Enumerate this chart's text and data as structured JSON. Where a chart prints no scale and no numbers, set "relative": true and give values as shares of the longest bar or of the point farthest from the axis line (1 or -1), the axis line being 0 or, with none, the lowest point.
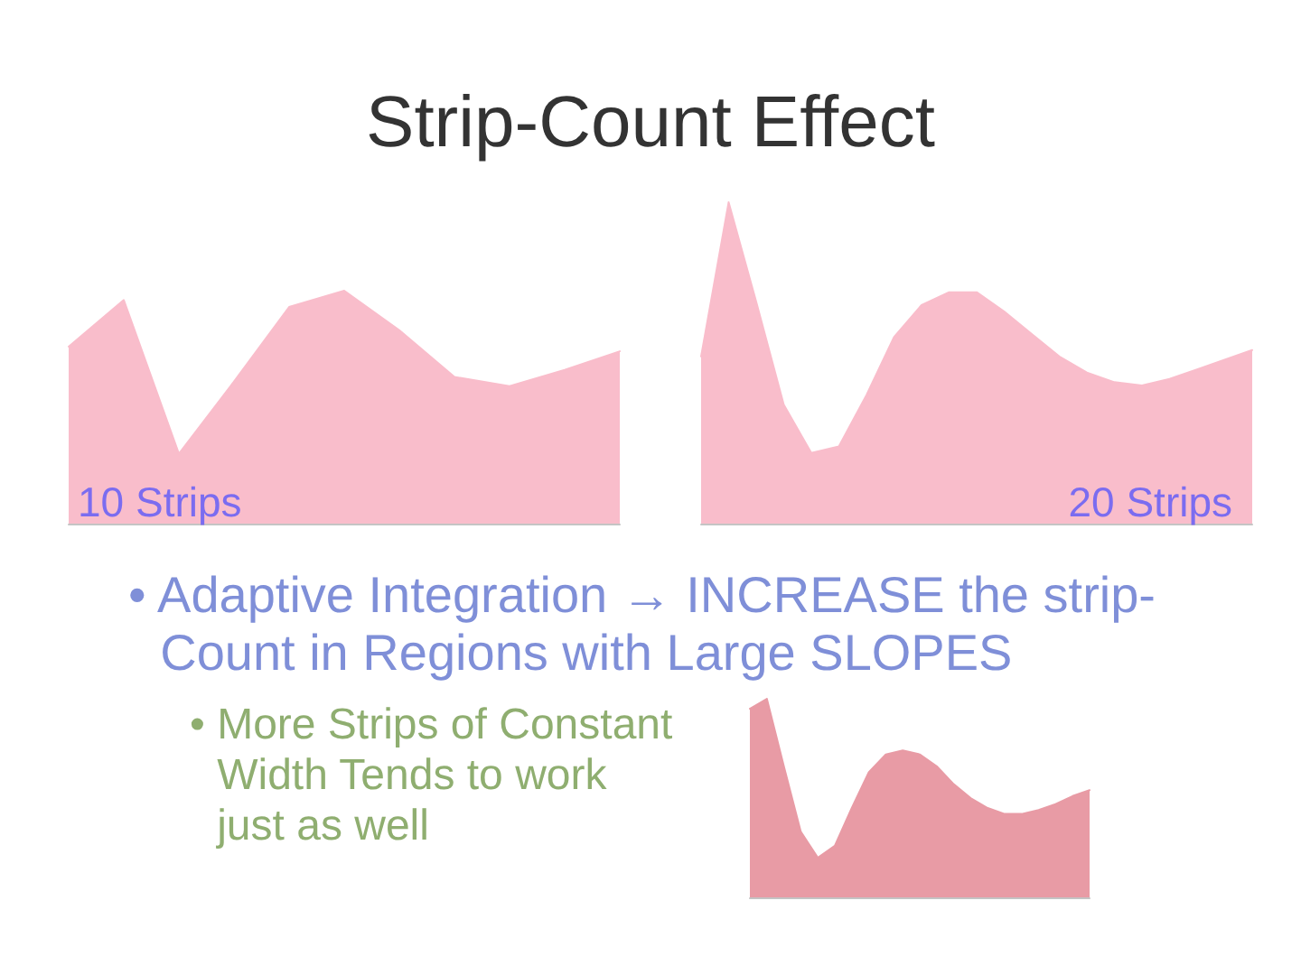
{
  "chart_data": [
    {
      "type": "other",
      "title": "Strip-Count Effect"
    },
    {
      "type": "area",
      "relative": true,
      "annotations": [
        "10 Strips"
      ],
      "categories": [
        null,
        null,
        null,
        null,
        null,
        null,
        null,
        null,
        null,
        null,
        null
      ],
      "color": "#f9bdcb",
      "values": [
        0.76,
        0.96,
        0.3,
        0.61,
        0.93,
        1,
        0.83,
        0.63,
        0.59,
        0.66,
        0.74
      ]
    },
    {
      "type": "area",
      "relative": true,
      "annotations": [
        "20 Strips"
      ],
      "categories": [
        null,
        null,
        null,
        null,
        null,
        null,
        null,
        null,
        null,
        null,
        null,
        null,
        null,
        null,
        null,
        null,
        null,
        null,
        null,
        null,
        null
      ],
      "series": [
        {
          "type": "area",
          "color": "#f9bdcb",
          "values": [
            0.52,
            1,
            0.69,
            0.37,
            0.22,
            0.24,
            0.4,
            0.58,
            0.68,
            0.72,
            0.72,
            0.66,
            0.59,
            0.52,
            0.47,
            0.44,
            0.43,
            0.45,
            0.48,
            0.51,
            0.54
          ]
        }
      ]
    },
    {
      "type": "other",
      "annotations": [
        "• Adaptive Integration → INCREASE the strip-Count in Regions with Large SLOPES",
        "• More Strips of Constant Width Tends to work just as well"
      ]
    },
    {
      "type": "area",
      "relative": true,
      "categories": [
        null,
        null,
        null,
        null,
        null,
        null,
        null,
        null,
        null,
        null,
        null,
        null,
        null,
        null,
        null,
        null,
        null,
        null,
        null,
        null,
        null
      ],
      "color": "#e89ba5",
      "values": [
        0.95,
        1,
        0.66,
        0.33,
        0.2,
        0.26,
        0.45,
        0.63,
        0.72,
        0.74,
        0.72,
        0.66,
        0.57,
        0.5,
        0.45,
        0.42,
        0.42,
        0.44,
        0.47,
        0.51,
        0.54
      ]
    }
  ]
}
